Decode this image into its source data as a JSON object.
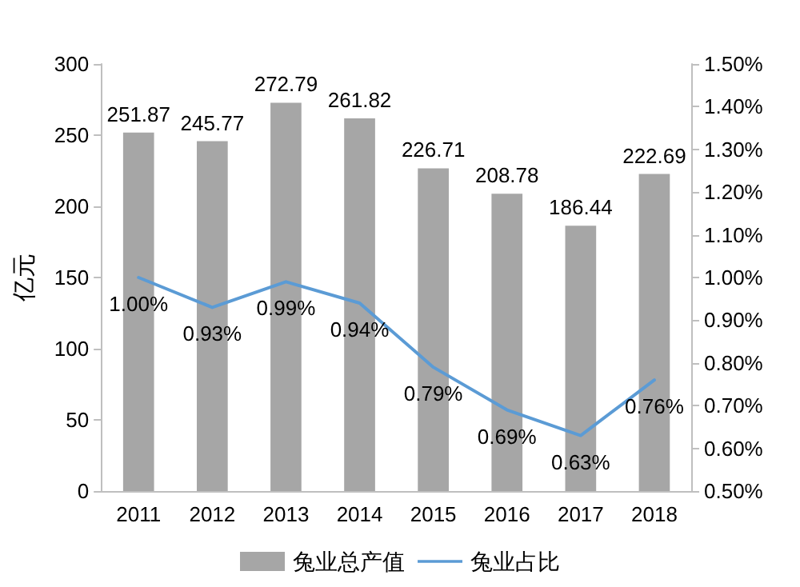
{
  "chart_data": {
    "type": "bar",
    "ylabel": "亿元",
    "categories": [
      "2011",
      "2012",
      "2013",
      "2014",
      "2015",
      "2016",
      "2017",
      "2018"
    ],
    "series": [
      {
        "name": "兔业总产值",
        "color": "#a6a6a6",
        "values": [
          251.87,
          245.77,
          272.79,
          261.82,
          226.71,
          208.78,
          186.44,
          222.69
        ],
        "value_labels": [
          "251.87",
          "245.77",
          "272.79",
          "261.82",
          "226.71",
          "208.78",
          "186.44",
          "222.69"
        ]
      },
      {
        "name": "兔业占比",
        "type": "line",
        "axis": "y2",
        "color": "#5b9bd5",
        "values": [
          1.0,
          0.93,
          0.99,
          0.94,
          0.79,
          0.69,
          0.63,
          0.76
        ],
        "value_labels": [
          "1.00%",
          "0.93%",
          "0.99%",
          "0.94%",
          "0.79%",
          "0.69%",
          "0.63%",
          "0.76%"
        ]
      }
    ],
    "ylim": [
      0,
      300
    ],
    "yticks": [
      0,
      50,
      100,
      150,
      200,
      250,
      300
    ],
    "y2lim": [
      0.5,
      1.5
    ],
    "y2ticks": [
      {
        "value": 0.5,
        "label": "0.50%"
      },
      {
        "value": 0.6,
        "label": "0.60%"
      },
      {
        "value": 0.7,
        "label": "0.70%"
      },
      {
        "value": 0.8,
        "label": "0.80%"
      },
      {
        "value": 0.9,
        "label": "0.90%"
      },
      {
        "value": 1.0,
        "label": "1.00%"
      },
      {
        "value": 1.1,
        "label": "1.10%"
      },
      {
        "value": 1.2,
        "label": "1.20%"
      },
      {
        "value": 1.3,
        "label": "1.30%"
      },
      {
        "value": 1.4,
        "label": "1.40%"
      },
      {
        "value": 1.5,
        "label": "1.50%"
      }
    ],
    "legend": "bottom",
    "marker": "none",
    "line_style": "solid",
    "grid": false
  }
}
